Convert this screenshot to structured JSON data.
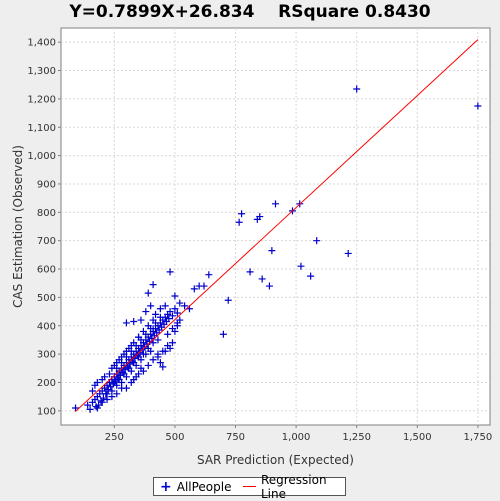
{
  "chart_data": {
    "type": "scatter",
    "title": "Y=0.7899X+26.834    RSquare 0.8430",
    "xlabel": "SAR Prediction (Expected)",
    "ylabel": "CAS Estimation (Observed)",
    "xlim": [
      30,
      1800
    ],
    "ylim": [
      50,
      1450
    ],
    "x_ticks": [
      "250",
      "500",
      "750",
      "1,000",
      "1,250",
      "1,500",
      "1,750"
    ],
    "x_tick_values": [
      250,
      500,
      750,
      1000,
      1250,
      1500,
      1750
    ],
    "y_ticks": [
      "100",
      "200",
      "300",
      "400",
      "500",
      "600",
      "700",
      "800",
      "900",
      "1,000",
      "1,100",
      "1,200",
      "1,300",
      "1,400"
    ],
    "y_tick_values": [
      100,
      200,
      300,
      400,
      500,
      600,
      700,
      800,
      900,
      1000,
      1100,
      1200,
      1300,
      1400
    ],
    "grid": true,
    "legend_position": "bottom-center",
    "series": [
      {
        "name": "AllPeople",
        "color": "#0000cc",
        "marker": "plus",
        "points": [
          [
            90,
            110
          ],
          [
            140,
            120
          ],
          [
            150,
            105
          ],
          [
            160,
            130
          ],
          [
            170,
            140
          ],
          [
            175,
            115
          ],
          [
            180,
            150
          ],
          [
            185,
            120
          ],
          [
            190,
            160
          ],
          [
            195,
            135
          ],
          [
            200,
            170
          ],
          [
            205,
            145
          ],
          [
            210,
            180
          ],
          [
            215,
            160
          ],
          [
            220,
            190
          ],
          [
            225,
            175
          ],
          [
            230,
            200
          ],
          [
            235,
            185
          ],
          [
            240,
            210
          ],
          [
            245,
            195
          ],
          [
            250,
            220
          ],
          [
            255,
            205
          ],
          [
            260,
            230
          ],
          [
            265,
            215
          ],
          [
            270,
            240
          ],
          [
            275,
            225
          ],
          [
            280,
            250
          ],
          [
            285,
            235
          ],
          [
            290,
            260
          ],
          [
            295,
            245
          ],
          [
            300,
            270
          ],
          [
            305,
            255
          ],
          [
            310,
            280
          ],
          [
            315,
            265
          ],
          [
            320,
            290
          ],
          [
            325,
            275
          ],
          [
            330,
            300
          ],
          [
            335,
            285
          ],
          [
            340,
            310
          ],
          [
            345,
            295
          ],
          [
            350,
            320
          ],
          [
            355,
            305
          ],
          [
            360,
            330
          ],
          [
            365,
            315
          ],
          [
            370,
            340
          ],
          [
            375,
            325
          ],
          [
            380,
            350
          ],
          [
            385,
            335
          ],
          [
            390,
            360
          ],
          [
            395,
            345
          ],
          [
            400,
            370
          ],
          [
            405,
            355
          ],
          [
            410,
            380
          ],
          [
            415,
            365
          ],
          [
            420,
            390
          ],
          [
            425,
            375
          ],
          [
            430,
            400
          ],
          [
            435,
            385
          ],
          [
            440,
            410
          ],
          [
            445,
            395
          ],
          [
            450,
            420
          ],
          [
            455,
            405
          ],
          [
            460,
            430
          ],
          [
            465,
            415
          ],
          [
            470,
            440
          ],
          [
            475,
            425
          ],
          [
            480,
            450
          ],
          [
            490,
            435
          ],
          [
            500,
            460
          ],
          [
            510,
            445
          ],
          [
            220,
            160
          ],
          [
            240,
            170
          ],
          [
            260,
            190
          ],
          [
            280,
            200
          ],
          [
            300,
            220
          ],
          [
            320,
            240
          ],
          [
            340,
            260
          ],
          [
            360,
            280
          ],
          [
            380,
            300
          ],
          [
            400,
            310
          ],
          [
            230,
            230
          ],
          [
            250,
            260
          ],
          [
            270,
            280
          ],
          [
            290,
            300
          ],
          [
            310,
            320
          ],
          [
            330,
            340
          ],
          [
            350,
            360
          ],
          [
            370,
            380
          ],
          [
            390,
            400
          ],
          [
            410,
            420
          ],
          [
            250,
            200
          ],
          [
            270,
            210
          ],
          [
            290,
            230
          ],
          [
            310,
            250
          ],
          [
            330,
            270
          ],
          [
            350,
            290
          ],
          [
            370,
            300
          ],
          [
            390,
            320
          ],
          [
            410,
            340
          ],
          [
            430,
            350
          ],
          [
            260,
            250
          ],
          [
            280,
            270
          ],
          [
            300,
            290
          ],
          [
            320,
            310
          ],
          [
            340,
            330
          ],
          [
            360,
            350
          ],
          [
            380,
            370
          ],
          [
            400,
            390
          ],
          [
            420,
            410
          ],
          [
            440,
            430
          ],
          [
            160,
            170
          ],
          [
            170,
            190
          ],
          [
            180,
            200
          ],
          [
            200,
            210
          ],
          [
            210,
            220
          ],
          [
            240,
            250
          ],
          [
            260,
            270
          ],
          [
            280,
            290
          ],
          [
            300,
            310
          ],
          [
            320,
            330
          ],
          [
            440,
            270
          ],
          [
            450,
            255
          ],
          [
            430,
            300
          ],
          [
            460,
            310
          ],
          [
            470,
            330
          ],
          [
            480,
            320
          ],
          [
            490,
            340
          ],
          [
            500,
            380
          ],
          [
            510,
            400
          ],
          [
            520,
            420
          ],
          [
            300,
            410
          ],
          [
            330,
            415
          ],
          [
            350,
            360
          ],
          [
            360,
            420
          ],
          [
            380,
            450
          ],
          [
            400,
            470
          ],
          [
            410,
            390
          ],
          [
            420,
            440
          ],
          [
            440,
            460
          ],
          [
            460,
            470
          ],
          [
            390,
            515
          ],
          [
            410,
            545
          ],
          [
            480,
            590
          ],
          [
            500,
            505
          ],
          [
            520,
            480
          ],
          [
            540,
            470
          ],
          [
            560,
            460
          ],
          [
            580,
            530
          ],
          [
            600,
            540
          ],
          [
            620,
            540
          ],
          [
            640,
            580
          ],
          [
            700,
            370
          ],
          [
            720,
            490
          ],
          [
            765,
            765
          ],
          [
            775,
            795
          ],
          [
            810,
            590
          ],
          [
            840,
            775
          ],
          [
            850,
            785
          ],
          [
            860,
            565
          ],
          [
            890,
            540
          ],
          [
            900,
            665
          ],
          [
            915,
            830
          ],
          [
            985,
            805
          ],
          [
            1015,
            830
          ],
          [
            1020,
            610
          ],
          [
            1060,
            575
          ],
          [
            1085,
            700
          ],
          [
            1215,
            655
          ],
          [
            1250,
            1235
          ],
          [
            1750,
            1175
          ],
          [
            330,
            210
          ],
          [
            350,
            230
          ],
          [
            370,
            240
          ],
          [
            390,
            260
          ],
          [
            410,
            280
          ],
          [
            430,
            290
          ],
          [
            450,
            310
          ],
          [
            470,
            370
          ],
          [
            490,
            390
          ],
          [
            510,
            410
          ],
          [
            180,
            110
          ],
          [
            200,
            130
          ],
          [
            220,
            140
          ],
          [
            240,
            150
          ],
          [
            260,
            160
          ],
          [
            280,
            180
          ],
          [
            300,
            180
          ],
          [
            320,
            200
          ],
          [
            340,
            220
          ],
          [
            360,
            250
          ]
        ]
      },
      {
        "name": "Regression Line",
        "color": "#ff0000",
        "type": "line",
        "points": [
          [
            90,
            98
          ],
          [
            1750,
            1409
          ]
        ]
      }
    ]
  },
  "legend": {
    "items": [
      {
        "label": "AllPeople"
      },
      {
        "label": "Regression Line"
      }
    ]
  }
}
